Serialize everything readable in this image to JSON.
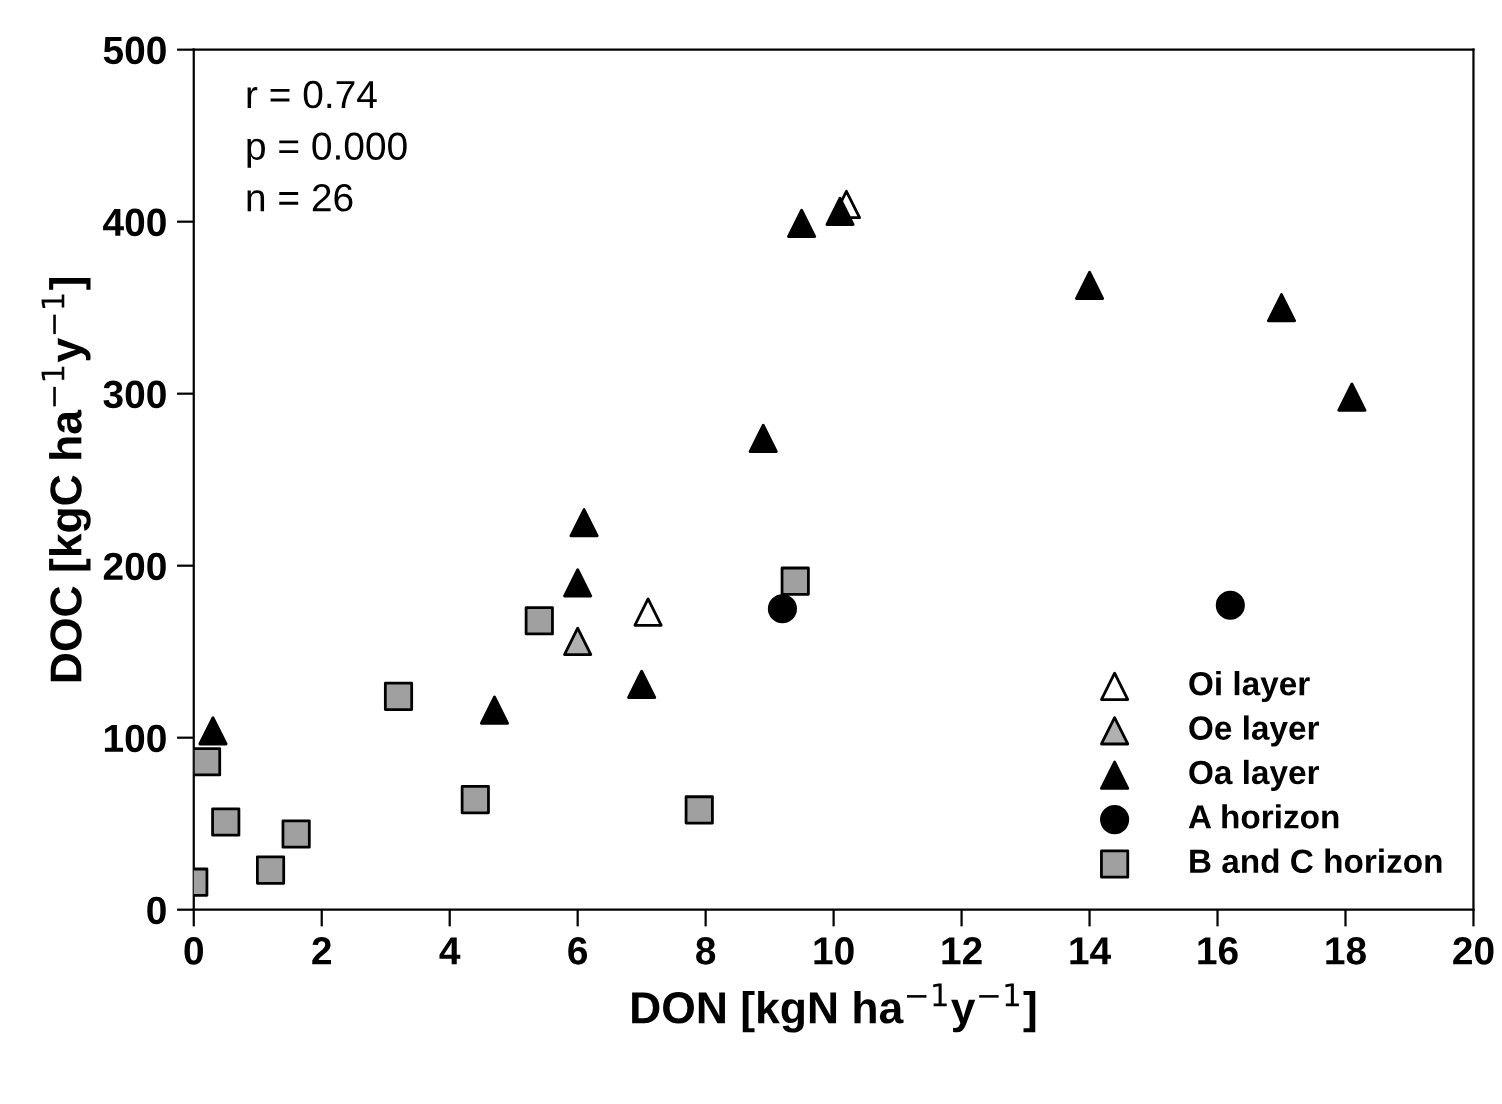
{
  "chart_data": {
    "type": "scatter",
    "xlabel": "DON [kgN ha$^{−1}$y$^{−1}$]",
    "ylabel": "DOC [kgC ha$^{−1}$y$^{−1}$]",
    "annotations": [
      "r = 0.74",
      "p = 0.000",
      "n = 26"
    ],
    "xlim": [
      0,
      20
    ],
    "xticks": [
      0,
      2,
      4,
      6,
      8,
      10,
      12,
      14,
      16,
      18,
      20
    ],
    "ylim": [
      0,
      500
    ],
    "yticks": [
      0,
      100,
      200,
      300,
      400,
      500
    ],
    "grid": false,
    "legend": "bottom right",
    "series": [
      {
        "name": "Oi layer",
        "color": "#ffffff",
        "marker": "triangle",
        "x": [
          7.1,
          10.2
        ],
        "values": [
          173,
          410
        ]
      },
      {
        "name": "Oe layer",
        "color": "#b0b0b0",
        "marker": "triangle",
        "x": [
          6.0
        ],
        "values": [
          156
        ]
      },
      {
        "name": "Oa layer",
        "color": "#000000",
        "marker": "triangle",
        "x": [
          0.3,
          4.7,
          6.0,
          6.1,
          7.0,
          8.9,
          9.5,
          10.1,
          14.0,
          17.0,
          18.1
        ],
        "values": [
          104,
          116,
          190,
          225,
          131,
          274,
          399,
          406,
          363,
          350,
          298
        ]
      },
      {
        "name": "A horizon",
        "color": "#000000",
        "marker": "circle",
        "x": [
          9.2,
          16.2
        ],
        "values": [
          175,
          177
        ]
      },
      {
        "name": "B and C horizon",
        "color": "#a0a0a0",
        "marker": "square",
        "x": [
          0,
          0.2,
          0.5,
          1.2,
          1.6,
          3.2,
          4.4,
          5.4,
          7.9,
          9.4
        ],
        "values": [
          16,
          86,
          51,
          23,
          44,
          124,
          64,
          168,
          58,
          191
        ]
      }
    ]
  }
}
